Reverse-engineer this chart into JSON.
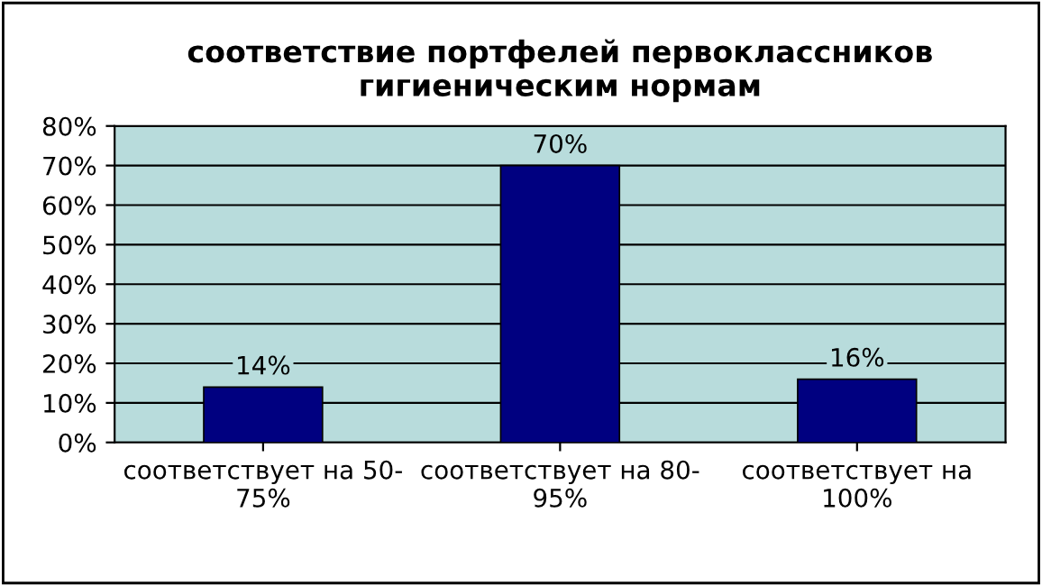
{
  "chart_data": {
    "type": "bar",
    "title": "соответствие портфелей первоклассников\nгигиеническим нормам",
    "categories": [
      "соответствует на 50-\n75%",
      "соответствует на 80-\n95%",
      "соответствует на\n100%"
    ],
    "values": [
      14,
      70,
      16
    ],
    "value_labels": [
      "14%",
      "70%",
      "16%"
    ],
    "color": "#000080",
    "ylim": [
      0,
      80
    ],
    "yticks": [
      {
        "value": 0,
        "label": "0%"
      },
      {
        "value": 10,
        "label": "10%"
      },
      {
        "value": 20,
        "label": "20%"
      },
      {
        "value": 30,
        "label": "30%"
      },
      {
        "value": 40,
        "label": "40%"
      },
      {
        "value": 50,
        "label": "50%"
      },
      {
        "value": 60,
        "label": "60%"
      },
      {
        "value": 70,
        "label": "70%"
      },
      {
        "value": 80,
        "label": "80%"
      }
    ],
    "grid": "y"
  }
}
